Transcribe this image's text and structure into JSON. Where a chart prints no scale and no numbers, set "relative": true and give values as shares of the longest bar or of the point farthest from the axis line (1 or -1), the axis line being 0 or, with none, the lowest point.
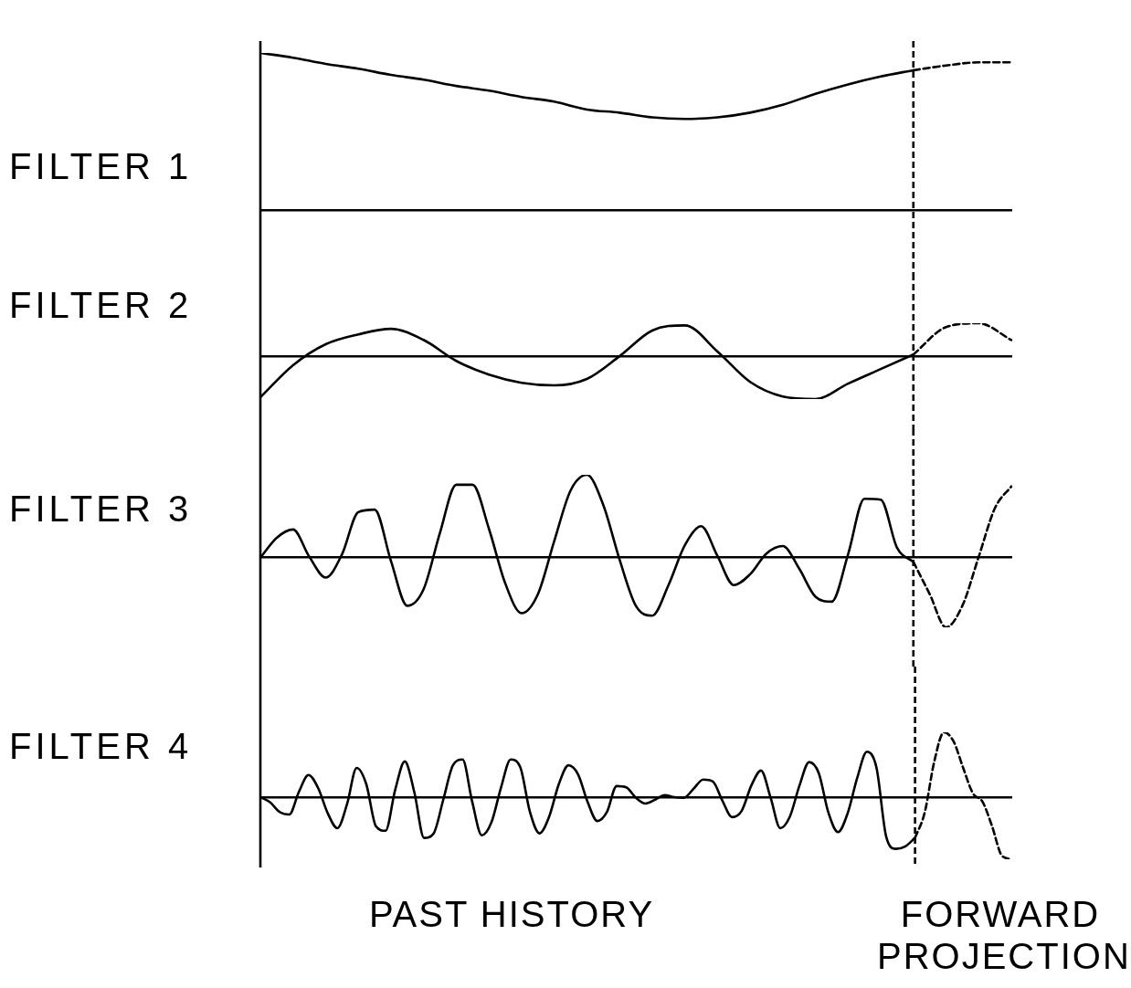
{
  "chart_data": [
    {
      "type": "line",
      "title": "FILTER 1",
      "relative": true,
      "categories": [
        null,
        null,
        null,
        null,
        null,
        null,
        null,
        null,
        null,
        null,
        null,
        null,
        null,
        null,
        null,
        null,
        null,
        null,
        null,
        null,
        null,
        null,
        null,
        null
      ],
      "series": [
        {
          "color": "#000000",
          "values": [
            1,
            0.97,
            0.93,
            0.9,
            0.86,
            0.83,
            0.79,
            0.76,
            0.72,
            0.69,
            0.64,
            0.62,
            0.59,
            0.58,
            0.59,
            0.62,
            0.67,
            0.74,
            0.8,
            0.85,
            0.89,
            null,
            null,
            null
          ]
        },
        {
          "color": "#000000",
          "line_style": "dashed",
          "values": [
            null,
            null,
            null,
            null,
            null,
            null,
            null,
            null,
            null,
            null,
            null,
            null,
            null,
            null,
            null,
            null,
            null,
            null,
            null,
            null,
            0.89,
            0.92,
            0.94,
            0.94
          ]
        }
      ],
      "ref_lines": [
        {
          "axis": "x",
          "line_style": "dashed",
          "color": "#000000"
        }
      ]
    },
    {
      "type": "line",
      "title": "FILTER 2",
      "relative": true,
      "categories": [
        null,
        null,
        null,
        null,
        null,
        null,
        null,
        null,
        null,
        null,
        null,
        null,
        null,
        null,
        null,
        null,
        null,
        null,
        null,
        null,
        null,
        null,
        null,
        null
      ],
      "series": [
        {
          "color": "#000000",
          "values": [
            -0.96,
            -0.21,
            0.28,
            0.51,
            0.64,
            0.38,
            -0.11,
            -0.43,
            -0.62,
            -0.68,
            -0.53,
            0,
            0.6,
            0.72,
            0.11,
            -0.6,
            -0.94,
            -1,
            -0.64,
            -0.3,
            0.04,
            null,
            null,
            null
          ]
        },
        {
          "color": "#000000",
          "line_style": "dashed",
          "values": [
            null,
            null,
            null,
            null,
            null,
            null,
            null,
            null,
            null,
            null,
            null,
            null,
            null,
            null,
            null,
            null,
            null,
            null,
            null,
            null,
            0.04,
            0.68,
            0.77,
            0.38
          ]
        }
      ],
      "ref_lines": [
        {
          "axis": "x",
          "line_style": "dashed",
          "color": "#000000"
        }
      ]
    },
    {
      "type": "line",
      "title": "FILTER 3",
      "relative": true,
      "categories": [
        null,
        null,
        null,
        null,
        null,
        null,
        null,
        null,
        null,
        null,
        null,
        null,
        null,
        null,
        null,
        null,
        null,
        null,
        null,
        null,
        null,
        null,
        null,
        null,
        null,
        null,
        null,
        null,
        null,
        null,
        null,
        null,
        null,
        null,
        null,
        null,
        null,
        null,
        null,
        null,
        null,
        null,
        null,
        null,
        null,
        null,
        null
      ],
      "series": [
        {
          "color": "#000000",
          "values": [
            0,
            0.24,
            0.34,
            0.01,
            -0.24,
            0.04,
            0.55,
            0.58,
            -0.04,
            -0.58,
            -0.38,
            0.3,
            0.88,
            0.88,
            0.35,
            -0.31,
            -0.67,
            -0.44,
            0.2,
            0.81,
            1,
            0.64,
            -0.02,
            -0.58,
            -0.7,
            -0.33,
            0.15,
            0.38,
            0.02,
            -0.33,
            -0.2,
            0.05,
            0.14,
            -0.13,
            -0.47,
            -0.53,
            0.04,
            0.71,
            0.7,
            0.12,
            -0.05,
            null,
            null,
            null,
            null,
            null,
            null
          ]
        },
        {
          "color": "#000000",
          "line_style": "dashed",
          "values": [
            null,
            null,
            null,
            null,
            null,
            null,
            null,
            null,
            null,
            null,
            null,
            null,
            null,
            null,
            null,
            null,
            null,
            null,
            null,
            null,
            null,
            null,
            null,
            null,
            null,
            null,
            null,
            null,
            null,
            null,
            null,
            null,
            null,
            null,
            null,
            null,
            null,
            null,
            null,
            null,
            -0.05,
            -0.44,
            -0.84,
            -0.58,
            0.01,
            0.6,
            0.86
          ]
        }
      ],
      "ref_lines": [
        {
          "axis": "x",
          "line_style": "dashed",
          "color": "#000000"
        }
      ]
    },
    {
      "type": "line",
      "title": "FILTER 4",
      "relative": true,
      "categories": [
        null,
        null,
        null,
        null,
        null,
        null,
        null,
        null,
        null,
        null,
        null,
        null,
        null,
        null,
        null,
        null,
        null,
        null,
        null,
        null,
        null,
        null,
        null,
        null,
        null,
        null,
        null,
        null,
        null,
        null,
        null,
        null,
        null,
        null,
        null,
        null,
        null,
        null,
        null,
        null,
        null,
        null,
        null,
        null,
        null,
        null,
        null,
        null,
        null,
        null,
        null,
        null,
        null,
        null,
        null,
        null,
        null,
        null,
        null,
        null,
        null,
        null,
        null,
        null,
        null,
        null,
        null,
        null,
        null,
        null,
        null,
        null,
        null,
        null,
        null,
        null,
        null,
        null,
        null
      ],
      "series": [
        {
          "color": "#000000",
          "values": [
            0,
            -0.08,
            -0.23,
            -0.27,
            0.08,
            0.34,
            0.14,
            -0.25,
            -0.48,
            -0.11,
            0.45,
            0.2,
            -0.45,
            -0.52,
            0.11,
            0.55,
            0.07,
            -0.63,
            -0.56,
            -0.04,
            0.49,
            0.58,
            -0.07,
            -0.59,
            -0.39,
            0.15,
            0.58,
            0.46,
            -0.23,
            -0.56,
            -0.3,
            0.2,
            0.49,
            0.35,
            -0.08,
            -0.37,
            -0.23,
            0.17,
            0.15,
            -0.01,
            -0.1,
            -0.04,
            0.03,
            0,
            -0.01,
            0.13,
            0.27,
            0.24,
            -0.06,
            -0.31,
            -0.21,
            0.18,
            0.41,
            -0.01,
            -0.48,
            -0.3,
            0.18,
            0.54,
            0.37,
            -0.24,
            -0.54,
            -0.25,
            0.3,
            0.7,
            0.45,
            -0.61,
            -0.8,
            -0.76,
            -0.63,
            null,
            null,
            null,
            null,
            null,
            null,
            null,
            null,
            null,
            null
          ]
        },
        {
          "color": "#000000",
          "line_style": "dashed",
          "values": [
            null,
            null,
            null,
            null,
            null,
            null,
            null,
            null,
            null,
            null,
            null,
            null,
            null,
            null,
            null,
            null,
            null,
            null,
            null,
            null,
            null,
            null,
            null,
            null,
            null,
            null,
            null,
            null,
            null,
            null,
            null,
            null,
            null,
            null,
            null,
            null,
            null,
            null,
            null,
            null,
            null,
            null,
            null,
            null,
            null,
            null,
            null,
            null,
            null,
            null,
            null,
            null,
            null,
            null,
            null,
            null,
            null,
            null,
            null,
            null,
            null,
            null,
            null,
            null,
            null,
            null,
            null,
            null,
            -0.63,
            -0.24,
            0.55,
            1,
            0.86,
            0.45,
            0.06,
            -0.07,
            -0.45,
            -0.9,
            -0.96
          ]
        }
      ],
      "ref_lines": [
        {
          "axis": "x",
          "line_style": "dashed",
          "color": "#000000"
        }
      ],
      "annotations": [
        "PAST HISTORY",
        "FORWARD PROJECTION"
      ]
    }
  ]
}
